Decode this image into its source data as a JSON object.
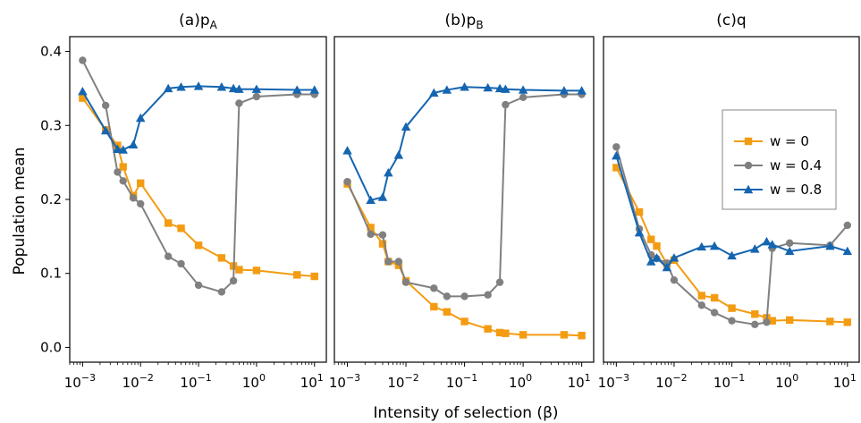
{
  "figure": {
    "ylabel": "Population mean",
    "xlabel": "Intensity of selection (β)"
  },
  "legend": {
    "entries": [
      "w = 0",
      "w = 0.4",
      "w = 0.8"
    ]
  },
  "colors": {
    "w0": "#F39C12",
    "w04": "#808080",
    "w08": "#1565B0"
  },
  "chart_data": [
    {
      "type": "line",
      "title_prefix": "(a)p",
      "title_sub": "A",
      "x_scale": "log",
      "xlim": [
        0.0006,
        16
      ],
      "ylim": [
        -0.02,
        0.42
      ],
      "yticks": [
        "0.0",
        "0.1",
        "0.2",
        "0.3",
        "0.4"
      ],
      "xticks": [
        "10^-3",
        "10^-2",
        "10^-1",
        "10^0",
        "10^1"
      ],
      "series": [
        {
          "name": "w = 0",
          "marker": "square",
          "x": [
            0.001,
            0.0025,
            0.004,
            0.005,
            0.0075,
            0.01,
            0.03,
            0.05,
            0.1,
            0.25,
            0.4,
            0.5,
            1,
            5,
            10
          ],
          "y": [
            0.337,
            0.294,
            0.273,
            0.244,
            0.205,
            0.222,
            0.168,
            0.161,
            0.138,
            0.121,
            0.11,
            0.105,
            0.104,
            0.098,
            0.096
          ]
        },
        {
          "name": "w = 0.4",
          "marker": "circle",
          "x": [
            0.001,
            0.0025,
            0.004,
            0.005,
            0.0075,
            0.01,
            0.03,
            0.05,
            0.1,
            0.25,
            0.4,
            0.5,
            1,
            5,
            10
          ],
          "y": [
            0.388,
            0.327,
            0.237,
            0.225,
            0.202,
            0.194,
            0.123,
            0.113,
            0.084,
            0.075,
            0.09,
            0.33,
            0.339,
            0.342,
            0.342
          ]
        },
        {
          "name": "w = 0.8",
          "marker": "triangle",
          "x": [
            0.001,
            0.0025,
            0.004,
            0.005,
            0.0075,
            0.01,
            0.03,
            0.05,
            0.1,
            0.25,
            0.4,
            0.5,
            1,
            5,
            10
          ],
          "y": [
            0.346,
            0.293,
            0.268,
            0.267,
            0.274,
            0.31,
            0.35,
            0.352,
            0.353,
            0.352,
            0.35,
            0.349,
            0.349,
            0.348,
            0.348
          ]
        }
      ]
    },
    {
      "type": "line",
      "title_prefix": "(b)p",
      "title_sub": "B",
      "x_scale": "log",
      "xlim": [
        0.0006,
        16
      ],
      "ylim": [
        -0.02,
        0.42
      ],
      "xticks": [
        "10^-3",
        "10^-2",
        "10^-1",
        "10^0",
        "10^1"
      ],
      "series": [
        {
          "name": "w = 0",
          "marker": "square",
          "x": [
            0.001,
            0.0025,
            0.004,
            0.005,
            0.0075,
            0.01,
            0.03,
            0.05,
            0.1,
            0.25,
            0.4,
            0.5,
            1,
            5,
            10
          ],
          "y": [
            0.221,
            0.162,
            0.14,
            0.116,
            0.111,
            0.09,
            0.055,
            0.048,
            0.035,
            0.025,
            0.02,
            0.019,
            0.017,
            0.017,
            0.016
          ]
        },
        {
          "name": "w = 0.4",
          "marker": "circle",
          "x": [
            0.001,
            0.0025,
            0.004,
            0.005,
            0.0075,
            0.01,
            0.03,
            0.05,
            0.1,
            0.25,
            0.4,
            0.5,
            1,
            5,
            10
          ],
          "y": [
            0.224,
            0.153,
            0.152,
            0.116,
            0.116,
            0.088,
            0.08,
            0.069,
            0.069,
            0.071,
            0.088,
            0.328,
            0.338,
            0.342,
            0.342
          ]
        },
        {
          "name": "w = 0.8",
          "marker": "triangle",
          "x": [
            0.001,
            0.0025,
            0.004,
            0.005,
            0.0075,
            0.01,
            0.03,
            0.05,
            0.1,
            0.25,
            0.4,
            0.5,
            1,
            5,
            10
          ],
          "y": [
            0.266,
            0.199,
            0.203,
            0.236,
            0.26,
            0.298,
            0.344,
            0.348,
            0.352,
            0.351,
            0.35,
            0.349,
            0.348,
            0.347,
            0.347
          ]
        }
      ]
    },
    {
      "type": "line",
      "title_prefix": "(c)q",
      "title_sub": "",
      "x_scale": "log",
      "xlim": [
        0.0006,
        16
      ],
      "ylim": [
        -0.02,
        0.42
      ],
      "xticks": [
        "10^-3",
        "10^-2",
        "10^-1",
        "10^0",
        "10^1"
      ],
      "series": [
        {
          "name": "w = 0",
          "marker": "square",
          "x": [
            0.001,
            0.0025,
            0.004,
            0.005,
            0.0075,
            0.01,
            0.03,
            0.05,
            0.1,
            0.25,
            0.4,
            0.5,
            1,
            5,
            10
          ],
          "y": [
            0.243,
            0.183,
            0.146,
            0.137,
            0.113,
            0.118,
            0.07,
            0.067,
            0.053,
            0.045,
            0.04,
            0.036,
            0.037,
            0.035,
            0.034
          ]
        },
        {
          "name": "w = 0.4",
          "marker": "circle",
          "x": [
            0.001,
            0.0025,
            0.004,
            0.005,
            0.0075,
            0.01,
            0.03,
            0.05,
            0.1,
            0.25,
            0.4,
            0.5,
            1,
            5,
            10
          ],
          "y": [
            0.271,
            0.16,
            0.125,
            0.12,
            0.114,
            0.091,
            0.057,
            0.047,
            0.036,
            0.031,
            0.034,
            0.134,
            0.141,
            0.138,
            0.165
          ]
        },
        {
          "name": "w = 0.8",
          "marker": "triangle",
          "x": [
            0.001,
            0.0025,
            0.004,
            0.005,
            0.0075,
            0.01,
            0.03,
            0.05,
            0.1,
            0.25,
            0.4,
            0.5,
            1,
            5,
            10
          ],
          "y": [
            0.259,
            0.155,
            0.116,
            0.121,
            0.108,
            0.121,
            0.136,
            0.137,
            0.124,
            0.133,
            0.143,
            0.139,
            0.13,
            0.137,
            0.13
          ]
        }
      ]
    }
  ]
}
